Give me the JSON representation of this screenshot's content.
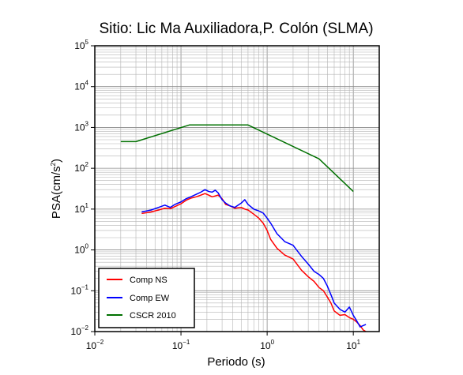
{
  "chart_data": {
    "type": "line",
    "title": "Sitio: Lic Ma Auxiliadora,P. Colón (SLMA)",
    "xlabel": "Periodo (s)",
    "ylabel_main": "PSA(cm/s",
    "ylabel_sup": "2",
    "ylabel_close": ")",
    "xscale": "log",
    "yscale": "log",
    "xlim": [
      0.01,
      20
    ],
    "ylim": [
      0.01,
      100000
    ],
    "grid": true,
    "legend_position": "bottom-left",
    "x_ticks": [
      {
        "base": "10",
        "exp": "−2",
        "value": 0.01
      },
      {
        "base": "10",
        "exp": "−1",
        "value": 0.1
      },
      {
        "base": "10",
        "exp": "0",
        "value": 1
      },
      {
        "base": "10",
        "exp": "1",
        "value": 10
      }
    ],
    "y_ticks": [
      {
        "base": "10",
        "exp": "−2",
        "value": 0.01
      },
      {
        "base": "10",
        "exp": "−1",
        "value": 0.1
      },
      {
        "base": "10",
        "exp": "0",
        "value": 1
      },
      {
        "base": "10",
        "exp": "1",
        "value": 10
      },
      {
        "base": "10",
        "exp": "2",
        "value": 100
      },
      {
        "base": "10",
        "exp": "3",
        "value": 1000
      },
      {
        "base": "10",
        "exp": "4",
        "value": 10000
      },
      {
        "base": "10",
        "exp": "5",
        "value": 100000
      }
    ],
    "series": [
      {
        "name": "Comp NS",
        "color": "#ff0000",
        "points": [
          [
            0.035,
            7.8
          ],
          [
            0.045,
            8.5
          ],
          [
            0.055,
            9.5
          ],
          [
            0.065,
            10.5
          ],
          [
            0.075,
            10.2
          ],
          [
            0.085,
            11.5
          ],
          [
            0.1,
            13.5
          ],
          [
            0.115,
            16.5
          ],
          [
            0.13,
            18.5
          ],
          [
            0.15,
            20
          ],
          [
            0.17,
            22
          ],
          [
            0.19,
            24
          ],
          [
            0.21,
            22
          ],
          [
            0.23,
            20
          ],
          [
            0.25,
            21
          ],
          [
            0.27,
            22
          ],
          [
            0.3,
            18
          ],
          [
            0.33,
            13
          ],
          [
            0.37,
            12
          ],
          [
            0.42,
            10.5
          ],
          [
            0.5,
            11
          ],
          [
            0.55,
            10
          ],
          [
            0.6,
            9.5
          ],
          [
            0.7,
            7.5
          ],
          [
            0.8,
            6
          ],
          [
            0.9,
            4.5
          ],
          [
            1.0,
            3
          ],
          [
            1.1,
            1.8
          ],
          [
            1.3,
            1.1
          ],
          [
            1.6,
            0.75
          ],
          [
            2.0,
            0.6
          ],
          [
            2.5,
            0.32
          ],
          [
            3.0,
            0.22
          ],
          [
            3.5,
            0.17
          ],
          [
            4.0,
            0.12
          ],
          [
            4.5,
            0.1
          ],
          [
            5.0,
            0.07
          ],
          [
            5.5,
            0.05
          ],
          [
            6.0,
            0.032
          ],
          [
            7.0,
            0.025
          ],
          [
            8.0,
            0.026
          ],
          [
            9.0,
            0.022
          ],
          [
            10.0,
            0.02
          ],
          [
            11.0,
            0.017
          ],
          [
            12.0,
            0.014
          ],
          [
            13.0,
            0.011
          ],
          [
            14.0,
            0.01
          ]
        ]
      },
      {
        "name": "Comp EW",
        "color": "#0000ff",
        "points": [
          [
            0.035,
            8.5
          ],
          [
            0.045,
            9.5
          ],
          [
            0.055,
            11
          ],
          [
            0.065,
            12.5
          ],
          [
            0.075,
            11
          ],
          [
            0.085,
            13
          ],
          [
            0.1,
            15
          ],
          [
            0.115,
            18
          ],
          [
            0.13,
            20
          ],
          [
            0.15,
            23
          ],
          [
            0.17,
            26
          ],
          [
            0.19,
            30
          ],
          [
            0.21,
            27
          ],
          [
            0.23,
            26
          ],
          [
            0.25,
            29
          ],
          [
            0.27,
            25
          ],
          [
            0.3,
            17
          ],
          [
            0.33,
            14
          ],
          [
            0.37,
            12
          ],
          [
            0.42,
            11
          ],
          [
            0.5,
            14
          ],
          [
            0.55,
            17
          ],
          [
            0.6,
            13
          ],
          [
            0.7,
            10
          ],
          [
            0.8,
            9
          ],
          [
            0.9,
            8
          ],
          [
            1.0,
            6
          ],
          [
            1.1,
            4.5
          ],
          [
            1.3,
            2.5
          ],
          [
            1.6,
            1.6
          ],
          [
            2.0,
            1.3
          ],
          [
            2.5,
            0.7
          ],
          [
            3.0,
            0.45
          ],
          [
            3.5,
            0.3
          ],
          [
            4.0,
            0.25
          ],
          [
            4.5,
            0.2
          ],
          [
            5.0,
            0.13
          ],
          [
            5.5,
            0.08
          ],
          [
            6.0,
            0.05
          ],
          [
            7.0,
            0.035
          ],
          [
            8.0,
            0.03
          ],
          [
            9.0,
            0.04
          ],
          [
            10.0,
            0.025
          ],
          [
            11.0,
            0.018
          ],
          [
            12.0,
            0.013
          ],
          [
            13.0,
            0.014
          ],
          [
            14.0,
            0.015
          ]
        ]
      },
      {
        "name": "CSCR 2010",
        "color": "#007000",
        "points": [
          [
            0.02,
            450
          ],
          [
            0.03,
            450
          ],
          [
            0.125,
            1150
          ],
          [
            0.6,
            1150
          ],
          [
            4.0,
            170
          ],
          [
            10.0,
            27
          ]
        ]
      }
    ]
  }
}
